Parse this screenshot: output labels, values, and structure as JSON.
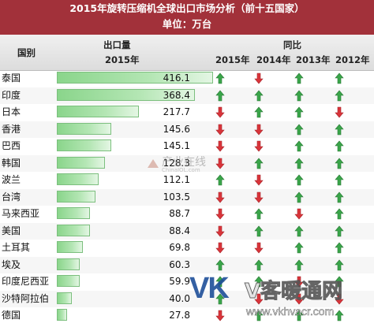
{
  "title": "2015年旋转压缩机全球出口市场分析（前十五国家）",
  "subtitle": "单位：万台",
  "header": {
    "country": "国别",
    "export": "出口量",
    "year": "2015年",
    "yoy": "同比",
    "years": [
      "2015年",
      "2014年",
      "2013年",
      "2012年"
    ]
  },
  "colors": {
    "up": "#3aa54a",
    "down": "#d9343a",
    "title_bg": "#a2313a",
    "bar": "#8ad58b"
  },
  "chart_data": {
    "type": "table",
    "title": "2015年旋转压缩机全球出口市场分析（前十五国家）",
    "unit": "单位：万台",
    "columns": [
      "国别",
      "出口量 2015年",
      "2015年",
      "2014年",
      "2013年",
      "2012年"
    ],
    "rows": [
      {
        "country": "泰国",
        "value": 416.1,
        "yoy": [
          "up",
          "down",
          "up",
          "up"
        ]
      },
      {
        "country": "印度",
        "value": 368.4,
        "yoy": [
          "up",
          "up",
          "up",
          "up"
        ]
      },
      {
        "country": "日本",
        "value": 217.7,
        "yoy": [
          "down",
          "up",
          "up",
          "down"
        ]
      },
      {
        "country": "香港",
        "value": 145.6,
        "yoy": [
          "down",
          "down",
          "up",
          "up"
        ]
      },
      {
        "country": "巴西",
        "value": 145.1,
        "yoy": [
          "down",
          "down",
          "up",
          "up"
        ]
      },
      {
        "country": "韩国",
        "value": 128.3,
        "yoy": [
          "down",
          "up",
          "up",
          "up"
        ]
      },
      {
        "country": "波兰",
        "value": 112.1,
        "yoy": [
          "up",
          "down",
          "up",
          "up"
        ]
      },
      {
        "country": "台湾",
        "value": 103.5,
        "yoy": [
          "down",
          "down",
          "up",
          "up"
        ]
      },
      {
        "country": "马来西亚",
        "value": 88.7,
        "yoy": [
          "down",
          "up",
          "down",
          "up"
        ]
      },
      {
        "country": "美国",
        "value": 88.4,
        "yoy": [
          "down",
          "up",
          "up",
          "up"
        ]
      },
      {
        "country": "土耳其",
        "value": 69.8,
        "yoy": [
          "down",
          "down",
          "up",
          "up"
        ]
      },
      {
        "country": "埃及",
        "value": 60.3,
        "yoy": [
          "up",
          "up",
          "up",
          "up"
        ]
      },
      {
        "country": "印度尼西亚",
        "value": 59.9,
        "yoy": [
          "up",
          "up",
          "down",
          "up"
        ]
      },
      {
        "country": "沙特阿拉伯",
        "value": 40.0,
        "yoy": [
          "up",
          "down",
          "down",
          "down"
        ]
      },
      {
        "country": "德国",
        "value": 27.8,
        "yoy": [
          "down",
          "up",
          "up",
          "up"
        ]
      }
    ]
  },
  "watermarks": {
    "center": "产业在线",
    "center_sub": "ChinaIOL.com",
    "vk_logo": "VK",
    "vk_cn": "V客暖通网",
    "vk_url": "www.vkhvacr.com"
  }
}
